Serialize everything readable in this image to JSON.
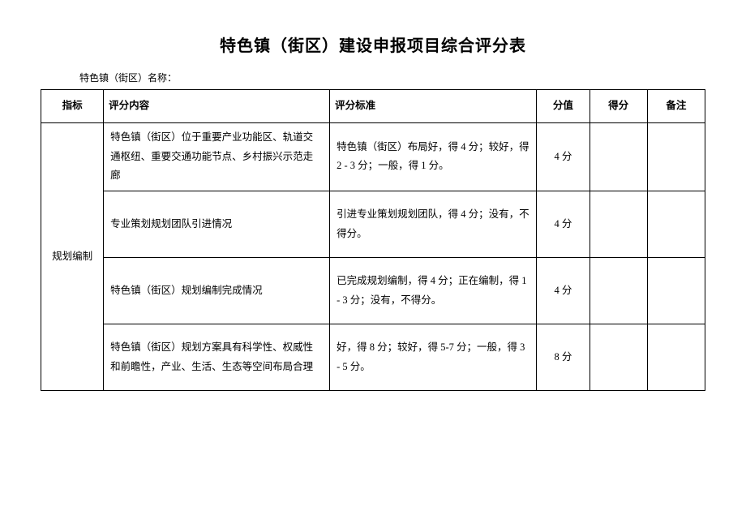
{
  "title": "特色镇（街区）建设申报项目综合评分表",
  "subtitle": "特色镇（街区）名称：",
  "headers": {
    "indicator": "指标",
    "content": "评分内容",
    "criteria": "评分标准",
    "score": "分值",
    "earned": "得分",
    "remark": "备注"
  },
  "indicator_group": "规划编制",
  "rows": [
    {
      "content": "特色镇（街区）位于重要产业功能区、轨道交通枢纽、重要交通功能节点、乡村振兴示范走廊",
      "criteria": "特色镇（街区）布局好，得 4 分；较好，得 2 - 3 分；一般，得 1 分。",
      "score": "4 分",
      "earned": "",
      "remark": ""
    },
    {
      "content": "专业策划规划团队引进情况",
      "criteria": "引进专业策划规划团队，得 4 分；没有，不得分。",
      "score": "4 分",
      "earned": "",
      "remark": ""
    },
    {
      "content": "特色镇（街区）规划编制完成情况",
      "criteria": "已完成规划编制，得 4 分；正在编制，得 1 - 3 分；没有，不得分。",
      "score": "4 分",
      "earned": "",
      "remark": ""
    },
    {
      "content": "特色镇（街区）规划方案具有科学性、权威性和前瞻性，产业、生活、生态等空间布局合理",
      "criteria": "好，得 8 分；较好，得 5-7 分；一般，得 3 - 5 分。",
      "score": "8 分",
      "earned": "",
      "remark": ""
    }
  ]
}
